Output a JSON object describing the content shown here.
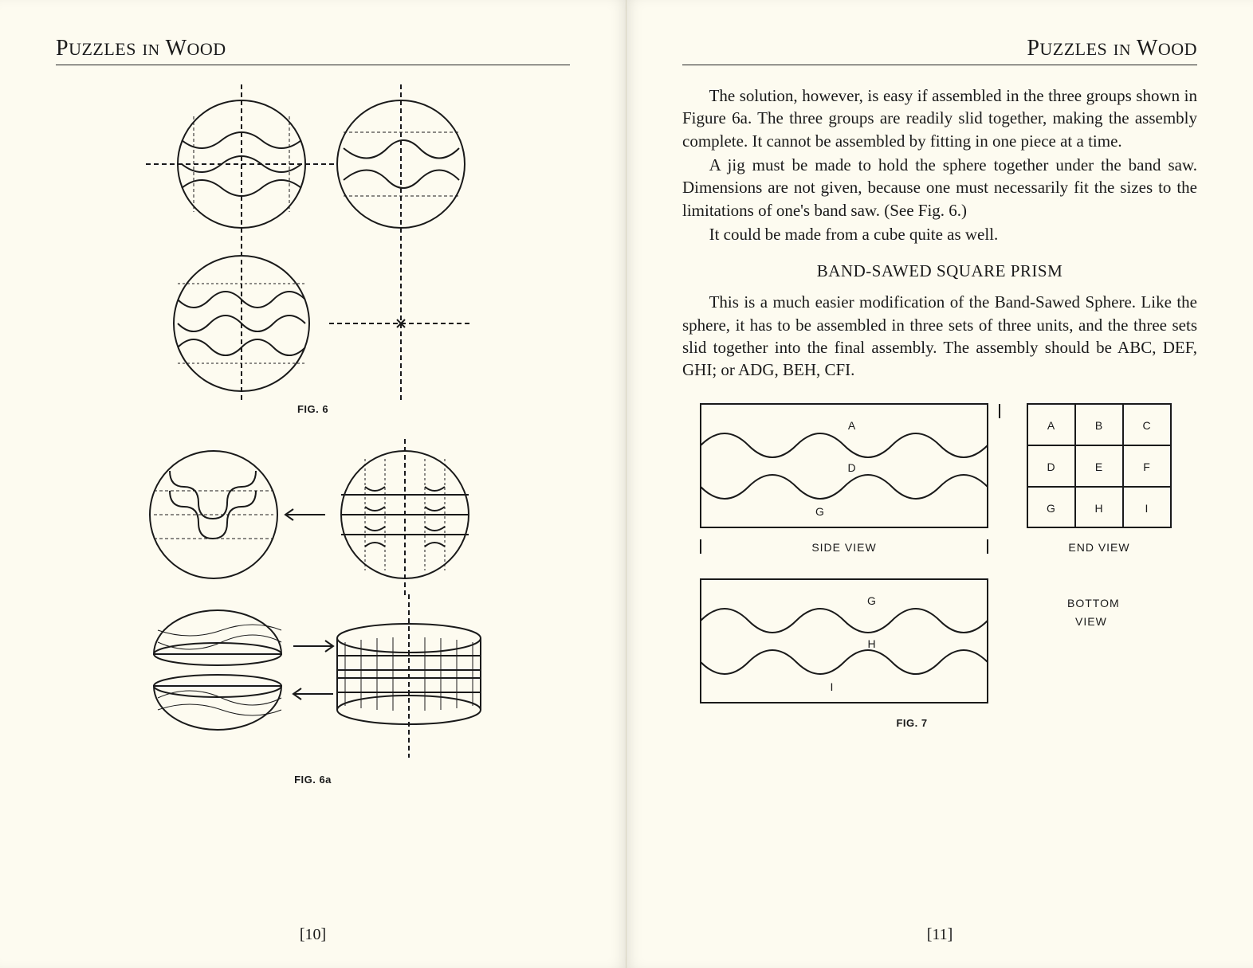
{
  "book_title": "Puzzles in Wood",
  "left": {
    "running_head_html": "P<span class='big'>uzzles</span> in W<span class='big'>ood</span>",
    "fig6_caption": "FIG. 6",
    "fig6a_caption": "FIG. 6a",
    "page_number": "[10]"
  },
  "right": {
    "running_head_html": "P<span class='big'>uzzles</span> in W<span class='big'>ood</span>",
    "para1": "The solution, however, is easy if assembled in the three groups shown in Figure 6a. The three groups are readily slid together, making the assembly complete. It cannot be assembled by fitting in one piece at a time.",
    "para2": "A jig must be made to hold the sphere together under the band saw. Dimensions are not given, because one must necessarily fit the sizes to the limitations of one's band saw. (See Fig. 6.)",
    "para3": "It could be made from a cube quite as well.",
    "section_heading": "BAND-SAWED SQUARE PRISM",
    "para4": "This is a much easier modification of the Band-Sawed Sphere. Like the sphere, it has to be assembled in three sets of three units, and the three sets slid together into the final assembly. The assembly should be ABC, DEF, GHI; or ADG, BEH, CFI.",
    "fig7": {
      "caption": "FIG. 7",
      "side_view_label": "SIDE  VIEW",
      "end_view_label": "END VIEW",
      "bottom_view_label_1": "BOTTOM",
      "bottom_view_label_2": "VIEW",
      "side_labels": {
        "top": "A",
        "mid": "D",
        "bot": "G"
      },
      "end_grid": [
        [
          "A",
          "B",
          "C"
        ],
        [
          "D",
          "E",
          "F"
        ],
        [
          "G",
          "H",
          "I"
        ]
      ],
      "bottom_labels": {
        "top": "G",
        "mid": "H",
        "bot": "I"
      }
    },
    "page_number": "[11]"
  },
  "colors": {
    "ink": "#1a1a1a",
    "paper": "#fdfbf0",
    "rule": "#222222"
  }
}
